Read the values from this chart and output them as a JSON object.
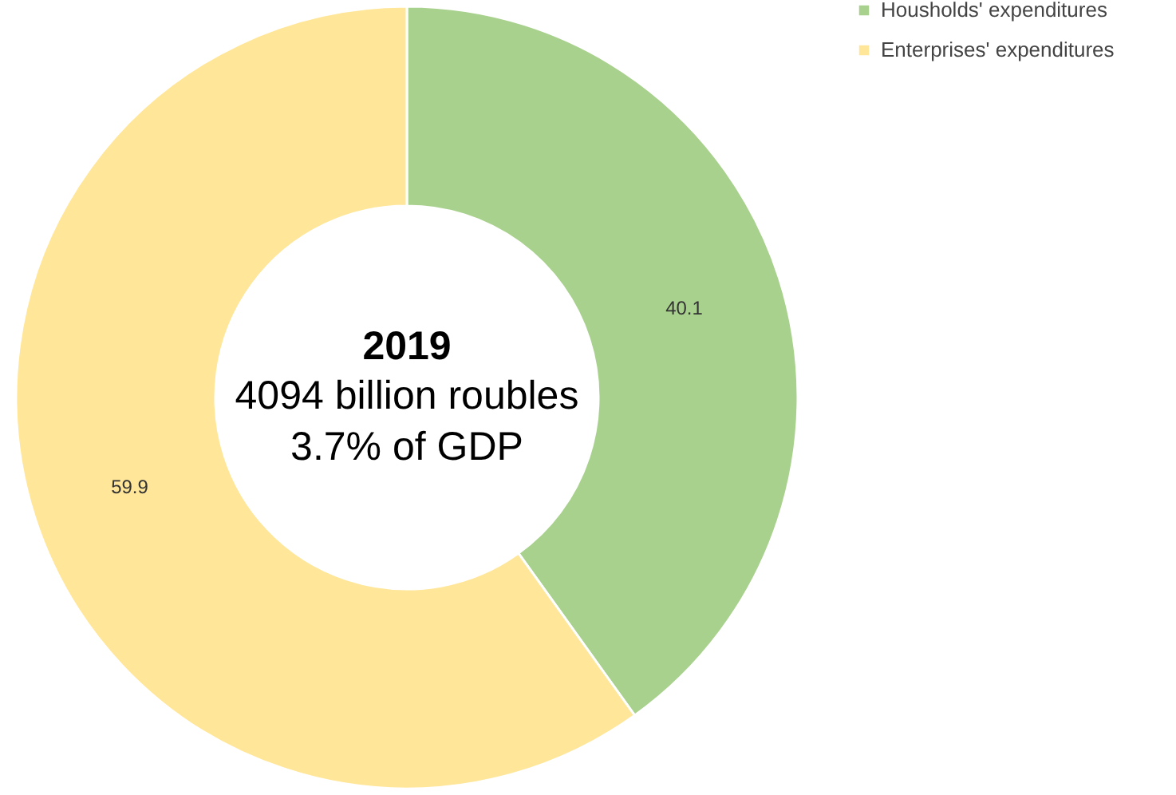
{
  "chart_data": {
    "type": "donut",
    "title": "2019",
    "annotations": [
      "4094 billion roubles",
      "3.7% of GDP"
    ],
    "categories": [
      "Housholds' expenditures",
      "Enterprises' expenditures"
    ],
    "values": [
      40.1,
      59.9
    ],
    "colors": [
      "#a9d18e",
      "#ffe699"
    ],
    "data_labels": true,
    "legend": "right"
  }
}
